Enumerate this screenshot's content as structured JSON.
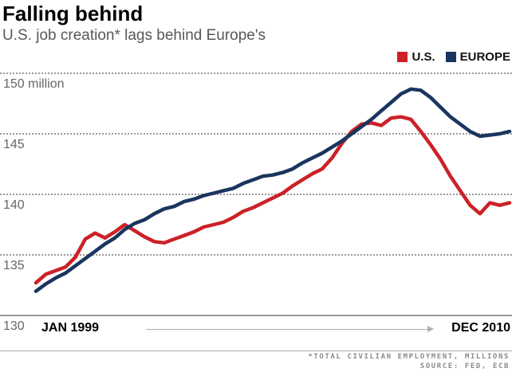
{
  "header": {
    "title": "Falling behind",
    "subtitle": "U.S. job creation* lags behind Europe's"
  },
  "legend": [
    {
      "label": "U.S.",
      "color": "#cc2127"
    },
    {
      "label": "EUROPE",
      "color": "#1a355e"
    }
  ],
  "xaxis": {
    "start_label": "JAN 1999",
    "end_label": "DEC 2010"
  },
  "footer": {
    "note": "*TOTAL CIVILIAN EMPLOYMENT, MILLIONS",
    "source": "SOURCE: FED, ECB"
  },
  "chart_data": {
    "type": "line",
    "title": "Falling behind",
    "subtitle": "U.S. job creation* lags behind Europe's",
    "ylabel": "Total civilian employment, millions",
    "x_range": [
      "JAN 1999",
      "DEC 2010"
    ],
    "sampling": "quarterly (49 points, Jan 1999 to Dec 2010)",
    "ylim": [
      130,
      151.5
    ],
    "grid": "horizontal dotted",
    "legend_position": "top-right",
    "yticks": [
      {
        "value": 150,
        "label": "150 million"
      },
      {
        "value": 145,
        "label": "145"
      },
      {
        "value": 140,
        "label": "140"
      },
      {
        "value": 135,
        "label": "135"
      },
      {
        "value": 130,
        "label": "130"
      }
    ],
    "series": [
      {
        "name": "U.S.",
        "color": "#cc2127",
        "values": [
          132.7,
          133.4,
          133.7,
          134.0,
          134.8,
          136.3,
          136.8,
          136.4,
          136.9,
          137.5,
          137.0,
          136.5,
          136.1,
          136.0,
          136.3,
          136.6,
          136.9,
          137.3,
          137.5,
          137.7,
          138.1,
          138.6,
          138.9,
          139.3,
          139.7,
          140.1,
          140.7,
          141.2,
          141.7,
          142.1,
          143.0,
          144.2,
          145.2,
          145.8,
          145.9,
          145.7,
          146.3,
          146.4,
          146.2,
          145.2,
          144.1,
          142.9,
          141.5,
          140.3,
          139.1,
          138.4,
          139.3,
          139.1,
          139.3
        ]
      },
      {
        "name": "EUROPE",
        "color": "#1a355e",
        "values": [
          132.0,
          132.6,
          133.1,
          133.5,
          134.1,
          134.7,
          135.3,
          135.9,
          136.4,
          137.1,
          137.6,
          137.9,
          138.4,
          138.8,
          139.0,
          139.4,
          139.6,
          139.9,
          140.1,
          140.3,
          140.5,
          140.9,
          141.2,
          141.5,
          141.6,
          141.8,
          142.1,
          142.6,
          143.0,
          143.4,
          143.9,
          144.4,
          145.0,
          145.6,
          146.2,
          146.9,
          147.6,
          148.3,
          148.7,
          148.6,
          148.0,
          147.2,
          146.4,
          145.8,
          145.2,
          144.8,
          144.9,
          145.0,
          145.2
        ]
      }
    ]
  }
}
